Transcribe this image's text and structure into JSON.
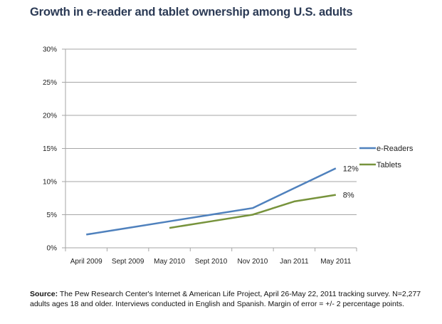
{
  "chart_data": {
    "type": "line",
    "title": "Growth in e-reader and tablet ownership among U.S. adults",
    "xlabel": "",
    "ylabel": "",
    "categories": [
      "April 2009",
      "Sept 2009",
      "May 2010",
      "Sept 2010",
      "Nov 2010",
      "Jan 2011",
      "May 2011"
    ],
    "ylim": [
      0,
      30
    ],
    "yticks": [
      0,
      5,
      10,
      15,
      20,
      25,
      30
    ],
    "ytick_labels": [
      "0%",
      "5%",
      "10%",
      "15%",
      "20%",
      "25%",
      "30%"
    ],
    "grid": true,
    "legend_position": "right",
    "series": [
      {
        "name": "e-Readers",
        "color": "#4f81bd",
        "values": [
          2,
          3,
          4,
          5,
          6,
          9,
          12
        ],
        "end_label": "12%"
      },
      {
        "name": "Tablets",
        "color": "#77933c",
        "values": [
          null,
          null,
          3,
          4,
          5,
          7,
          8
        ],
        "end_label": "8%"
      }
    ]
  },
  "source": {
    "label": "Source:",
    "text": " The Pew Research Center's Internet & American Life Project, April 26-May 22, 2011 tracking survey. N=2,277 adults ages 18 and older. Interviews conducted in English and Spanish. Margin of error = +/- 2 percentage points."
  }
}
